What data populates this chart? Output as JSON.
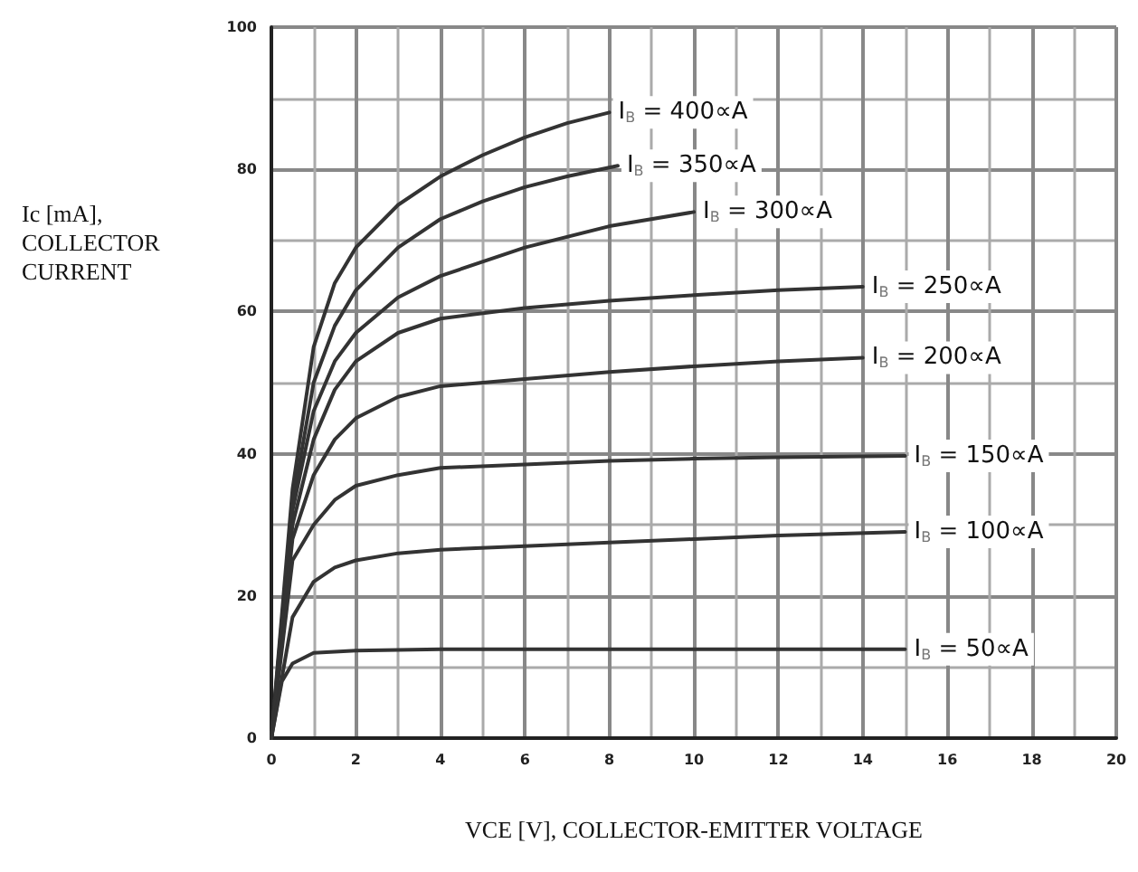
{
  "chart_data": {
    "type": "line",
    "xlabel": "VCE [V], COLLECTOR-EMITTER VOLTAGE",
    "ylabel": "Ic [mA], COLLECTOR CURRENT",
    "xlim": [
      0,
      20
    ],
    "xticks": [
      0,
      2,
      4,
      6,
      8,
      10,
      12,
      14,
      16,
      18,
      20
    ],
    "ylim": [
      0,
      100
    ],
    "yticks": [
      0,
      20,
      40,
      60,
      80,
      100
    ],
    "grid": true,
    "legend": false,
    "marker": "none",
    "line_style": "solid",
    "series": [
      {
        "name": "I$_{B}$ = 400∝A",
        "color": "#333333",
        "x": [
          0,
          0.5,
          1,
          1.5,
          2,
          3,
          4,
          5,
          6,
          7,
          8
        ],
        "values": [
          0,
          35,
          55,
          64,
          69,
          75,
          79,
          82,
          84.5,
          86.5,
          88
        ]
      },
      {
        "name": "I$_{B}$ = 350∝A",
        "color": "#333333",
        "x": [
          0,
          0.5,
          1,
          1.5,
          2,
          3,
          4,
          5,
          6,
          7,
          8.2
        ],
        "values": [
          0,
          33,
          50,
          58,
          63,
          69,
          73,
          75.5,
          77.5,
          79,
          80.5
        ]
      },
      {
        "name": "I$_{B}$ = 300∝A",
        "color": "#333333",
        "x": [
          0,
          0.5,
          1,
          1.5,
          2,
          3,
          4,
          6,
          8,
          10
        ],
        "values": [
          0,
          32,
          46,
          53,
          57,
          62,
          65,
          69,
          72,
          74
        ]
      },
      {
        "name": "I$_{B}$ = 250∝A",
        "color": "#333333",
        "x": [
          0,
          0.5,
          1,
          1.5,
          2,
          3,
          4,
          6,
          8,
          10,
          12,
          14
        ],
        "values": [
          0,
          30,
          42,
          49,
          53,
          57,
          59,
          60.5,
          61.5,
          62.3,
          63,
          63.5
        ]
      },
      {
        "name": "I$_{B}$ = 200∝A",
        "color": "#333333",
        "x": [
          0,
          0.5,
          1,
          1.5,
          2,
          3,
          4,
          6,
          8,
          10,
          12,
          14
        ],
        "values": [
          0,
          28,
          37,
          42,
          45,
          48,
          49.5,
          50.5,
          51.5,
          52.3,
          53,
          53.5
        ]
      },
      {
        "name": "I$_{B}$ = 150∝A",
        "color": "#333333",
        "x": [
          0,
          0.5,
          1,
          1.5,
          2,
          3,
          4,
          6,
          8,
          10,
          12,
          15
        ],
        "values": [
          0,
          25,
          30,
          33.5,
          35.5,
          37,
          38,
          38.5,
          39,
          39.3,
          39.5,
          39.7
        ]
      },
      {
        "name": "I$_{B}$ = 100∝A",
        "color": "#333333",
        "x": [
          0,
          0.5,
          1,
          1.5,
          2,
          3,
          4,
          6,
          8,
          10,
          12,
          15
        ],
        "values": [
          0,
          17,
          22,
          24,
          25,
          26,
          26.5,
          27,
          27.5,
          28,
          28.5,
          29
        ]
      },
      {
        "name": "I$_{B}$ = 50∝A",
        "color": "#333333",
        "x": [
          0,
          0.25,
          0.5,
          1,
          2,
          4,
          15
        ],
        "values": [
          0,
          8,
          10.5,
          12,
          12.3,
          12.5,
          12.5
        ]
      }
    ]
  }
}
